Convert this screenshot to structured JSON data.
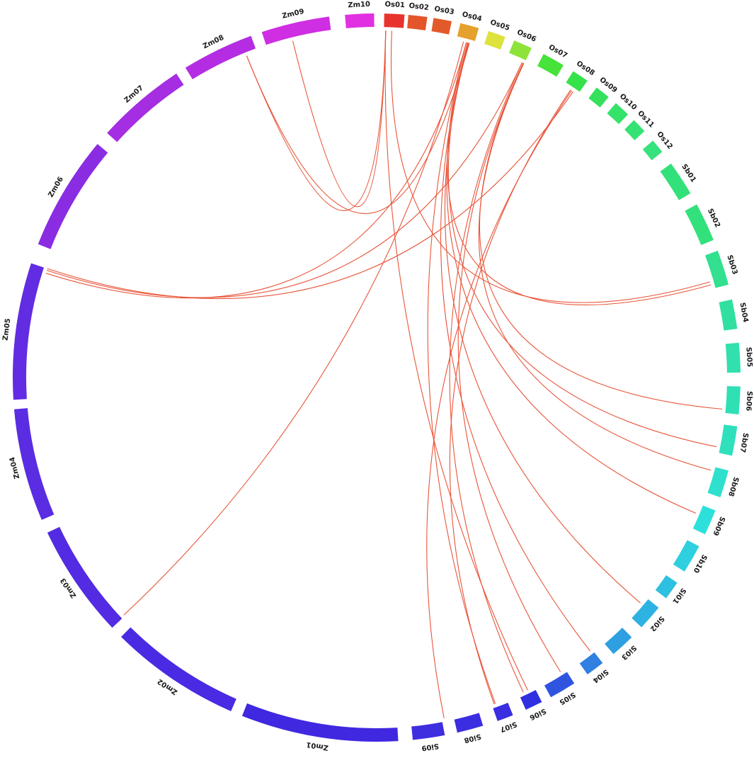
{
  "chromosomes": [
    {
      "name": "Os01",
      "color": "#e8332d"
    },
    {
      "name": "Os02",
      "color": "#e5552b"
    },
    {
      "name": "Os03",
      "color": "#e35a2a"
    },
    {
      "name": "Os04",
      "color": "#e6a02e"
    },
    {
      "name": "Os05",
      "color": "#dde23c"
    },
    {
      "name": "Os06",
      "color": "#8ee33a"
    },
    {
      "name": "Os07",
      "color": "#47e23a"
    },
    {
      "name": "Os08",
      "color": "#36e24a"
    },
    {
      "name": "Os09",
      "color": "#35e15c"
    },
    {
      "name": "Os10",
      "color": "#35e26a"
    },
    {
      "name": "Os11",
      "color": "#35e273"
    },
    {
      "name": "Os12",
      "color": "#35e27c"
    },
    {
      "name": "Sb01",
      "color": "#33e17a"
    },
    {
      "name": "Sb02",
      "color": "#33e17c"
    },
    {
      "name": "Sb03",
      "color": "#32e08f"
    },
    {
      "name": "Sb04",
      "color": "#31e0a0"
    },
    {
      "name": "Sb05",
      "color": "#31e0ac"
    },
    {
      "name": "Sb06",
      "color": "#30e0b5"
    },
    {
      "name": "Sb07",
      "color": "#30e0bd"
    },
    {
      "name": "Sb08",
      "color": "#2fe0cc"
    },
    {
      "name": "Sb09",
      "color": "#2ee0dc"
    },
    {
      "name": "Sb10",
      "color": "#2ed0e0"
    },
    {
      "name": "Si01",
      "color": "#2ec0e0"
    },
    {
      "name": "Si02",
      "color": "#2eb2e2"
    },
    {
      "name": "Si03",
      "color": "#2e9fe0"
    },
    {
      "name": "Si04",
      "color": "#2f80e0"
    },
    {
      "name": "Si05",
      "color": "#2f55e0"
    },
    {
      "name": "Si06",
      "color": "#3030e0"
    },
    {
      "name": "Si07",
      "color": "#3a2ee0"
    },
    {
      "name": "Si08",
      "color": "#3b2ee0"
    },
    {
      "name": "Si09",
      "color": "#3e2ee0"
    },
    {
      "name": "Zm01",
      "color": "#4028e0"
    },
    {
      "name": "Zm02",
      "color": "#4a2ae2"
    },
    {
      "name": "Zm03",
      "color": "#522be2"
    },
    {
      "name": "Zm04",
      "color": "#5a2ce2"
    },
    {
      "name": "Zm05",
      "color": "#612ce2"
    },
    {
      "name": "Zm06",
      "color": "#8a2ce2"
    },
    {
      "name": "Zm07",
      "color": "#a52de2"
    },
    {
      "name": "Zm08",
      "color": "#b42de2"
    },
    {
      "name": "Zm09",
      "color": "#cf2ee2"
    },
    {
      "name": "Zm10",
      "color": "#e030e2"
    }
  ],
  "link_color": "#e8553a"
}
